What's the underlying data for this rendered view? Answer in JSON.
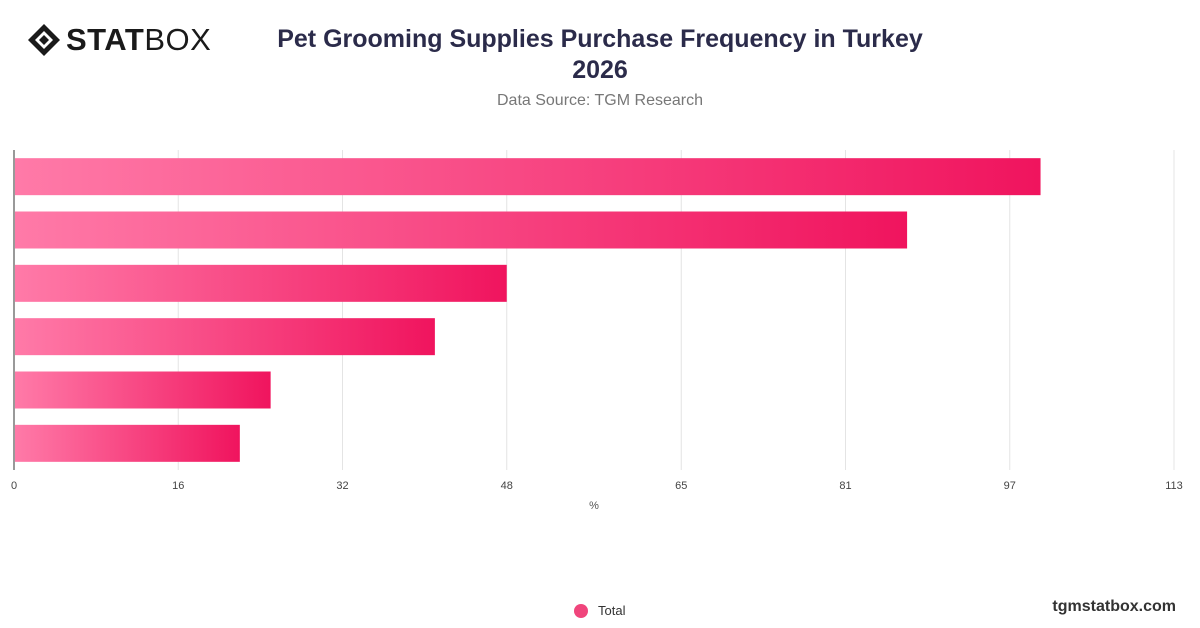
{
  "brand": {
    "logo_bold": "STAT",
    "logo_light": "BOX",
    "footer": "tgmstatbox.com"
  },
  "header": {
    "title_line1": "Pet Grooming Supplies Purchase Frequency in Turkey",
    "title_line2": "2026",
    "subtitle": "Data Source: TGM Research"
  },
  "legend": {
    "label": "Total"
  },
  "colors": {
    "bar_start": "#ff7aa8",
    "bar_end": "#f0145e",
    "grid": "#e4e4e4",
    "legend": "#f0457c"
  },
  "chart_data": {
    "type": "bar",
    "orientation": "horizontal",
    "categories": [
      "",
      "",
      "",
      "",
      "",
      ""
    ],
    "series": [
      {
        "name": "Total",
        "values": [
          100,
          87,
          48,
          41,
          25,
          22
        ]
      }
    ],
    "xlabel": "%",
    "xlim": [
      0,
      113
    ],
    "xticks": [
      0,
      16,
      32,
      48,
      65,
      81,
      97,
      113
    ],
    "grid": true,
    "legend_position": "bottom"
  }
}
